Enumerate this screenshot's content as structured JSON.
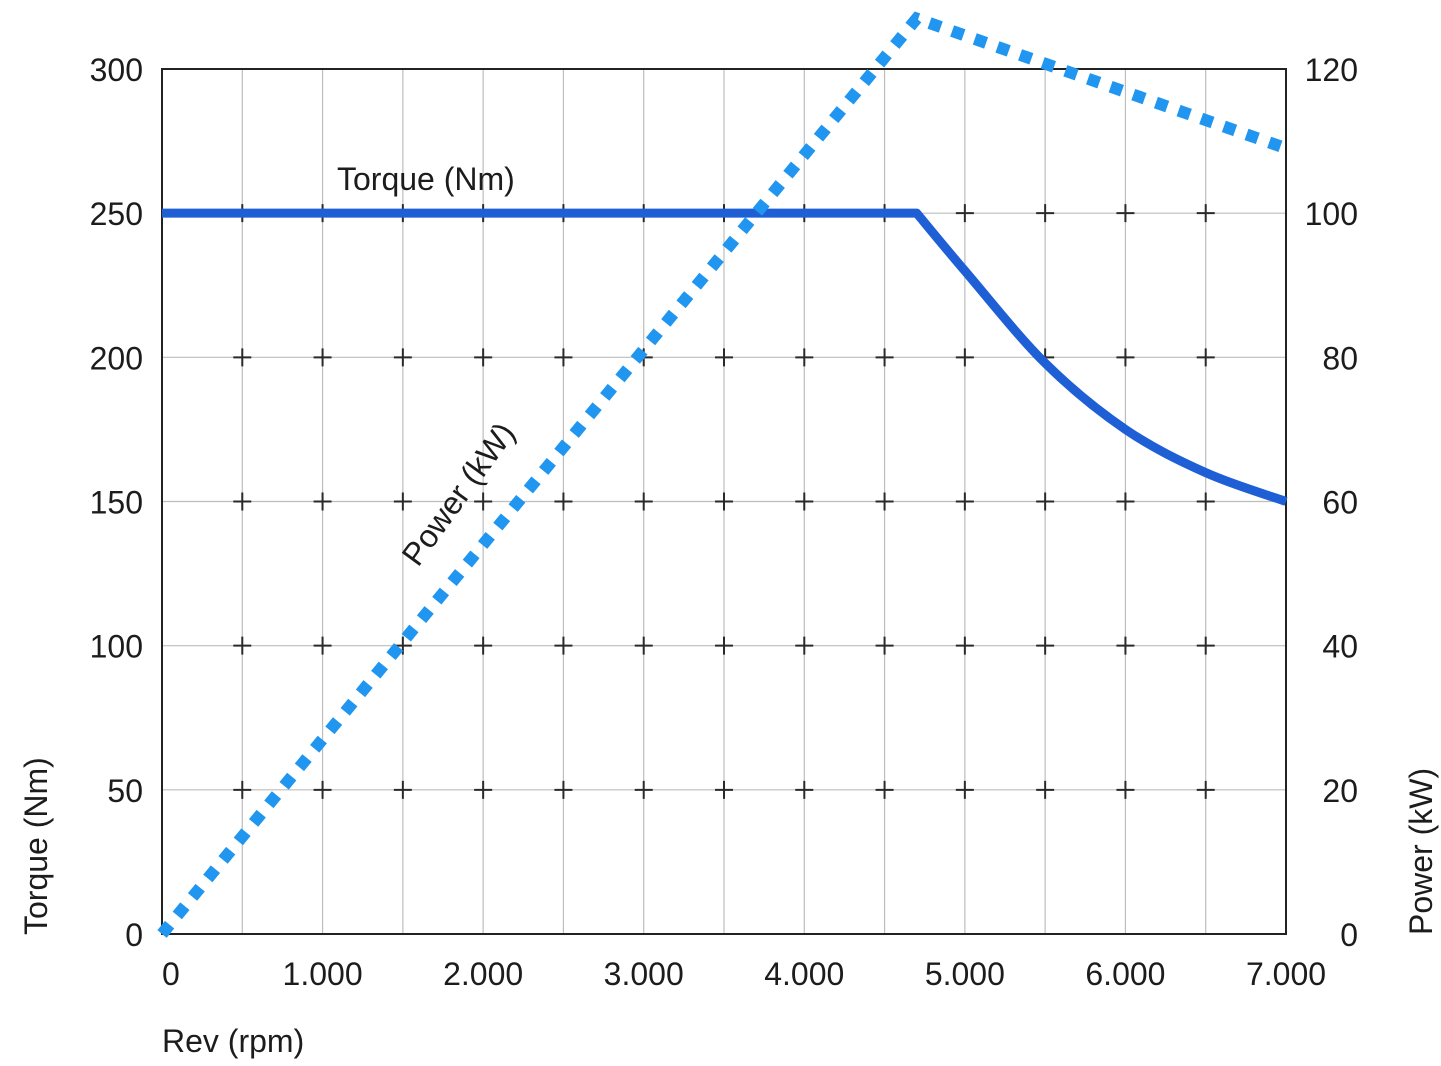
{
  "chart_data": {
    "type": "line",
    "xlabel": "Rev (rpm)",
    "ylabel_left": "Torque (Nm)",
    "ylabel_right": "Power (kW)",
    "xlim": [
      0,
      7000
    ],
    "ylim_left": [
      0,
      300
    ],
    "ylim_right": [
      0,
      120
    ],
    "x_ticks": [
      0,
      1000,
      2000,
      3000,
      4000,
      5000,
      6000,
      7000
    ],
    "x_tick_labels": [
      "0",
      "1.000",
      "2.000",
      "3.000",
      "4.000",
      "5.000",
      "6.000",
      "7.000"
    ],
    "y_left_ticks": [
      0,
      50,
      100,
      150,
      200,
      250,
      300
    ],
    "y_left_tick_labels": [
      "0",
      "50",
      "100",
      "150",
      "200",
      "250",
      "300"
    ],
    "y_right_ticks": [
      0,
      20,
      40,
      60,
      80,
      100,
      120
    ],
    "y_right_tick_labels": [
      "0",
      "20",
      "40",
      "60",
      "80",
      "100",
      "120"
    ],
    "grid": true,
    "series": [
      {
        "name": "Torque (Nm)",
        "axis": "left",
        "style": "solid",
        "color": "#1f5fd6",
        "x": [
          0,
          4700,
          5000,
          5500,
          6000,
          6500,
          7000
        ],
        "y": [
          250,
          250,
          230,
          198,
          175,
          160,
          150
        ]
      },
      {
        "name": "Power (kW)",
        "axis": "right",
        "style": "dotted",
        "color": "#2196f0",
        "x": [
          0,
          4700,
          7000
        ],
        "y": [
          0,
          127,
          109
        ]
      }
    ]
  }
}
